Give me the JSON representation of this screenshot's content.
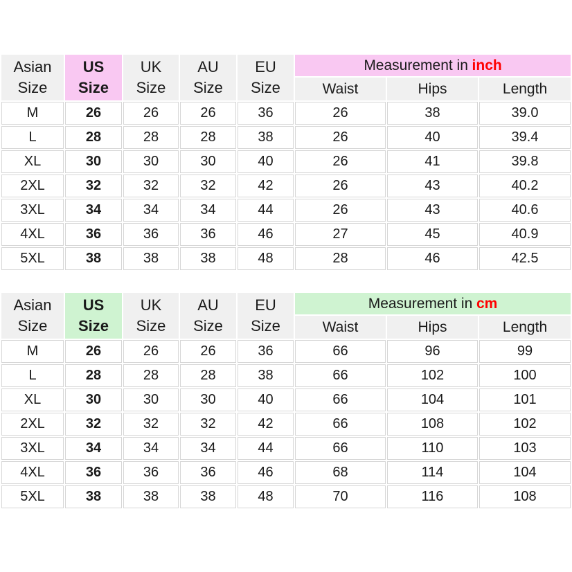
{
  "page": {
    "background": "#ffffff"
  },
  "colors": {
    "header_gray": "#f0f0f0",
    "pink_highlight": "#f9c8f2",
    "green_highlight": "#cff3d1",
    "unit_red": "#ff0000",
    "cell_border": "#d6d6d6",
    "text": "#1a1a1a"
  },
  "row_keys": [
    "asian",
    "us",
    "uk",
    "au",
    "eu",
    "waist",
    "hips",
    "length"
  ],
  "tables": [
    {
      "id": "inch",
      "columns": [
        "Asian\nSize",
        "US\nSize",
        "UK\nSize",
        "AU\nSize",
        "EU\nSize"
      ],
      "measurement_label": "Measurement in",
      "measurement_unit": "inch",
      "sub_headers": [
        "Waist",
        "Hips",
        "Length"
      ],
      "rows": [
        {
          "asian": "M",
          "us": "26",
          "uk": "26",
          "au": "26",
          "eu": "36",
          "waist": "26",
          "hips": "38",
          "length": "39.0"
        },
        {
          "asian": "L",
          "us": "28",
          "uk": "28",
          "au": "28",
          "eu": "38",
          "waist": "26",
          "hips": "40",
          "length": "39.4"
        },
        {
          "asian": "XL",
          "us": "30",
          "uk": "30",
          "au": "30",
          "eu": "40",
          "waist": "26",
          "hips": "41",
          "length": "39.8"
        },
        {
          "asian": "2XL",
          "us": "32",
          "uk": "32",
          "au": "32",
          "eu": "42",
          "waist": "26",
          "hips": "43",
          "length": "40.2"
        },
        {
          "asian": "3XL",
          "us": "34",
          "uk": "34",
          "au": "34",
          "eu": "44",
          "waist": "26",
          "hips": "43",
          "length": "40.6"
        },
        {
          "asian": "4XL",
          "us": "36",
          "uk": "36",
          "au": "36",
          "eu": "46",
          "waist": "27",
          "hips": "45",
          "length": "40.9"
        },
        {
          "asian": "5XL",
          "us": "38",
          "uk": "38",
          "au": "38",
          "eu": "48",
          "waist": "28",
          "hips": "46",
          "length": "42.5"
        }
      ]
    },
    {
      "id": "cm",
      "columns": [
        "Asian\nSize",
        "US\nSize",
        "UK\nSize",
        "AU\nSize",
        "EU\nSize"
      ],
      "measurement_label": "Measurement in",
      "measurement_unit": "cm",
      "sub_headers": [
        "Waist",
        "Hips",
        "Length"
      ],
      "rows": [
        {
          "asian": "M",
          "us": "26",
          "uk": "26",
          "au": "26",
          "eu": "36",
          "waist": "66",
          "hips": "96",
          "length": "99"
        },
        {
          "asian": "L",
          "us": "28",
          "uk": "28",
          "au": "28",
          "eu": "38",
          "waist": "66",
          "hips": "102",
          "length": "100"
        },
        {
          "asian": "XL",
          "us": "30",
          "uk": "30",
          "au": "30",
          "eu": "40",
          "waist": "66",
          "hips": "104",
          "length": "101"
        },
        {
          "asian": "2XL",
          "us": "32",
          "uk": "32",
          "au": "32",
          "eu": "42",
          "waist": "66",
          "hips": "108",
          "length": "102"
        },
        {
          "asian": "3XL",
          "us": "34",
          "uk": "34",
          "au": "34",
          "eu": "44",
          "waist": "66",
          "hips": "110",
          "length": "103"
        },
        {
          "asian": "4XL",
          "us": "36",
          "uk": "36",
          "au": "36",
          "eu": "46",
          "waist": "68",
          "hips": "114",
          "length": "104"
        },
        {
          "asian": "5XL",
          "us": "38",
          "uk": "38",
          "au": "38",
          "eu": "48",
          "waist": "70",
          "hips": "116",
          "length": "108"
        }
      ]
    }
  ],
  "chart_data": [
    {
      "type": "table",
      "title": "Measurement in inch",
      "unit": "inch",
      "columns": [
        "Asian Size",
        "US Size",
        "UK Size",
        "AU Size",
        "EU Size",
        "Waist",
        "Hips",
        "Length"
      ],
      "rows": [
        [
          "M",
          "26",
          "26",
          "26",
          "36",
          "26",
          "38",
          "39.0"
        ],
        [
          "L",
          "28",
          "28",
          "28",
          "38",
          "26",
          "40",
          "39.4"
        ],
        [
          "XL",
          "30",
          "30",
          "30",
          "40",
          "26",
          "41",
          "39.8"
        ],
        [
          "2XL",
          "32",
          "32",
          "32",
          "42",
          "26",
          "43",
          "40.2"
        ],
        [
          "3XL",
          "34",
          "34",
          "34",
          "44",
          "26",
          "43",
          "40.6"
        ],
        [
          "4XL",
          "36",
          "36",
          "36",
          "46",
          "27",
          "45",
          "40.9"
        ],
        [
          "5XL",
          "38",
          "38",
          "38",
          "48",
          "28",
          "46",
          "42.5"
        ]
      ]
    },
    {
      "type": "table",
      "title": "Measurement in cm",
      "unit": "cm",
      "columns": [
        "Asian Size",
        "US Size",
        "UK Size",
        "AU Size",
        "EU Size",
        "Waist",
        "Hips",
        "Length"
      ],
      "rows": [
        [
          "M",
          "26",
          "26",
          "26",
          "36",
          "66",
          "96",
          "99"
        ],
        [
          "L",
          "28",
          "28",
          "28",
          "38",
          "66",
          "102",
          "100"
        ],
        [
          "XL",
          "30",
          "30",
          "30",
          "40",
          "66",
          "104",
          "101"
        ],
        [
          "2XL",
          "32",
          "32",
          "32",
          "42",
          "66",
          "108",
          "102"
        ],
        [
          "3XL",
          "34",
          "34",
          "34",
          "44",
          "66",
          "110",
          "103"
        ],
        [
          "4XL",
          "36",
          "36",
          "36",
          "46",
          "68",
          "114",
          "104"
        ],
        [
          "5XL",
          "38",
          "38",
          "38",
          "48",
          "70",
          "116",
          "108"
        ]
      ]
    }
  ]
}
